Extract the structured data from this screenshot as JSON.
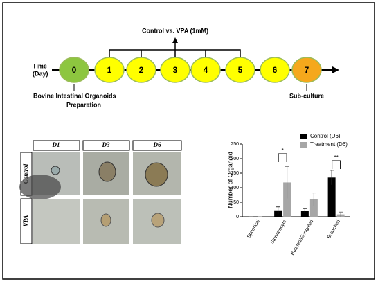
{
  "timeline": {
    "time_label": [
      "Time",
      "(Day)"
    ],
    "days": [
      {
        "label": "0",
        "color": "#8dc63f"
      },
      {
        "label": "1",
        "color": "#ffff00"
      },
      {
        "label": "2",
        "color": "#ffff00"
      },
      {
        "label": "3",
        "color": "#ffff00"
      },
      {
        "label": "4",
        "color": "#ffff00"
      },
      {
        "label": "5",
        "color": "#ffff00"
      },
      {
        "label": "6",
        "color": "#ffff00"
      },
      {
        "label": "7",
        "color": "#f5a81c"
      }
    ],
    "treatment_label": "Control vs. VPA (1mM)",
    "start_label": [
      "Bovine Intestinal Organoids",
      "Preparation"
    ],
    "end_label": "Sub-culture"
  },
  "micrographs": {
    "columns": [
      "D1",
      "D3",
      "D6"
    ],
    "rows": [
      "Control",
      "VPA"
    ]
  },
  "chart_data": {
    "type": "bar",
    "ylabel": "Number of Organoid",
    "categories": [
      "Spherical",
      "Stomatocyte",
      "Budded/Elongated",
      "Branched"
    ],
    "series": [
      {
        "name": "Control (D6)",
        "color": "#000000",
        "values": [
          0,
          22,
          20,
          135
        ],
        "errors": [
          0,
          12,
          8,
          25
        ]
      },
      {
        "name": "Treatment (D6)",
        "color": "#a6a6a6",
        "values": [
          0,
          118,
          60,
          8
        ],
        "errors": [
          0,
          55,
          22,
          8
        ]
      }
    ],
    "annotations": [
      "*",
      "**"
    ],
    "ylim": [
      0,
      250
    ],
    "yticks": [
      0,
      50,
      100,
      150,
      200,
      250
    ]
  }
}
